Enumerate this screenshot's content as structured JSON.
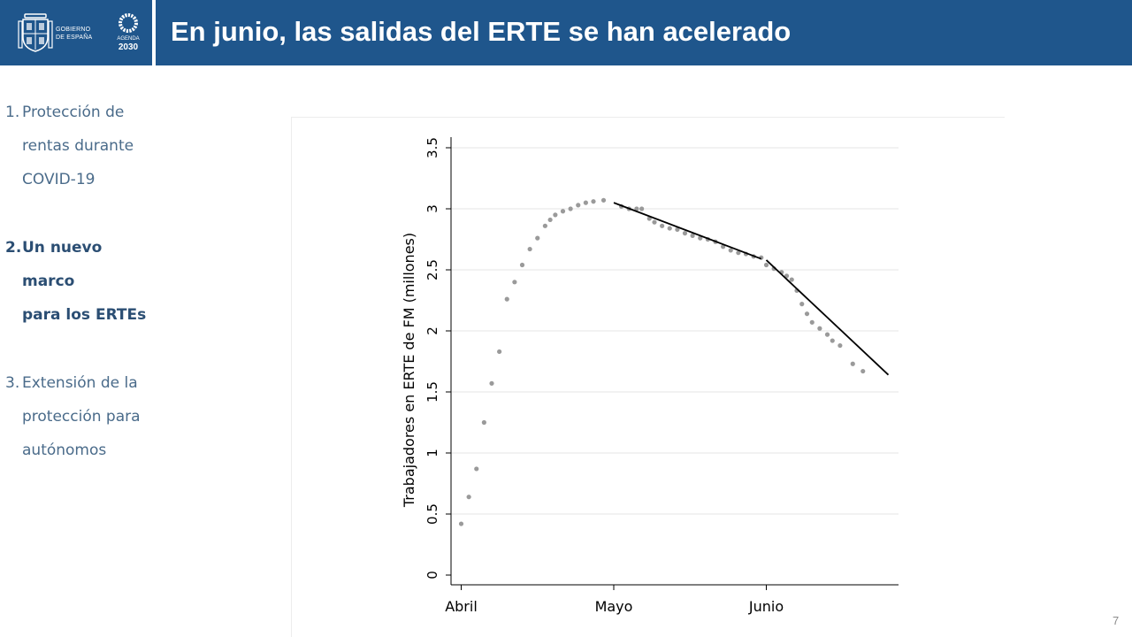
{
  "header": {
    "title": "En junio, las salidas del ERTE se han acelerado",
    "logo_gov_line1": "GOBIERNO",
    "logo_gov_line2": "DE ESPAÑA",
    "logo_agenda_label": "AGENDA",
    "logo_agenda_year": "2030",
    "colors": {
      "bar": "#1f568c",
      "text": "#ffffff"
    }
  },
  "sidebar": {
    "items": [
      {
        "number": "1.",
        "lines": [
          "Protección de",
          "rentas durante",
          "COVID-19"
        ],
        "active": false
      },
      {
        "number": "2.",
        "lines": [
          "Un nuevo marco",
          "para los ERTEs"
        ],
        "active": true
      },
      {
        "number": "3.",
        "lines": [
          "Extensión de la",
          "protección para",
          "autónomos"
        ],
        "active": false
      }
    ],
    "colors": {
      "normal": "#4a6b8a",
      "active": "#2b4e73"
    }
  },
  "chart_data": {
    "type": "scatter",
    "title": "",
    "xlabel": "",
    "ylabel": "Trabajadores en ERTE de FM (millones)",
    "ylim": [
      0,
      3.5
    ],
    "y_ticks": [
      "0",
      "0.5",
      "1",
      "1.5",
      "2",
      "2.5",
      "3",
      "3.5"
    ],
    "x_ticks": [
      {
        "label": "Abril",
        "day": 0
      },
      {
        "label": "Mayo",
        "day": 30
      },
      {
        "label": "Junio",
        "day": 60
      }
    ],
    "grid": true,
    "series": [
      {
        "points": [
          [
            0,
            0.42
          ],
          [
            1.5,
            0.64
          ],
          [
            3,
            0.87
          ],
          [
            4.5,
            1.25
          ],
          [
            6,
            1.57
          ],
          [
            7.5,
            1.83
          ],
          [
            9,
            2.26
          ],
          [
            10.5,
            2.4
          ],
          [
            12,
            2.54
          ],
          [
            13.5,
            2.67
          ],
          [
            15,
            2.76
          ],
          [
            16.5,
            2.86
          ],
          [
            17.5,
            2.91
          ],
          [
            18.5,
            2.95
          ],
          [
            20,
            2.98
          ],
          [
            21.5,
            3.0
          ],
          [
            23,
            3.03
          ],
          [
            24.5,
            3.05
          ],
          [
            26,
            3.06
          ],
          [
            28,
            3.07
          ],
          [
            31.5,
            3.02
          ],
          [
            33,
            3.0
          ],
          [
            34.5,
            3.0
          ],
          [
            35.5,
            3.0
          ],
          [
            37,
            2.92
          ],
          [
            38,
            2.89
          ],
          [
            39.5,
            2.86
          ],
          [
            41,
            2.84
          ],
          [
            42.5,
            2.83
          ],
          [
            44,
            2.8
          ],
          [
            45.5,
            2.78
          ],
          [
            47,
            2.76
          ],
          [
            48.5,
            2.75
          ],
          [
            50,
            2.73
          ],
          [
            51.5,
            2.69
          ],
          [
            53,
            2.66
          ],
          [
            54.5,
            2.64
          ],
          [
            56,
            2.63
          ],
          [
            57.5,
            2.61
          ],
          [
            59,
            2.6
          ],
          [
            60,
            2.54
          ],
          [
            61.5,
            2.51
          ],
          [
            63,
            2.48
          ],
          [
            64,
            2.45
          ],
          [
            65,
            2.42
          ],
          [
            66,
            2.33
          ],
          [
            67,
            2.22
          ],
          [
            68,
            2.14
          ],
          [
            69,
            2.07
          ],
          [
            70.5,
            2.02
          ],
          [
            72,
            1.97
          ],
          [
            73,
            1.92
          ],
          [
            74.5,
            1.88
          ],
          [
            77,
            1.73
          ],
          [
            79,
            1.67
          ]
        ],
        "color": "#9a9a9a"
      }
    ],
    "trend_lines": [
      {
        "x": [
          30,
          59
        ],
        "y": [
          3.05,
          2.59
        ]
      },
      {
        "x": [
          60,
          84
        ],
        "y": [
          2.58,
          1.64
        ]
      }
    ],
    "x_domain": [
      -2,
      86
    ],
    "colors": {
      "axis": "#000000",
      "grid": "#e6e6e6",
      "points": "#9a9a9a",
      "trend": "#000000"
    }
  },
  "footer": {
    "page_number": "7"
  }
}
